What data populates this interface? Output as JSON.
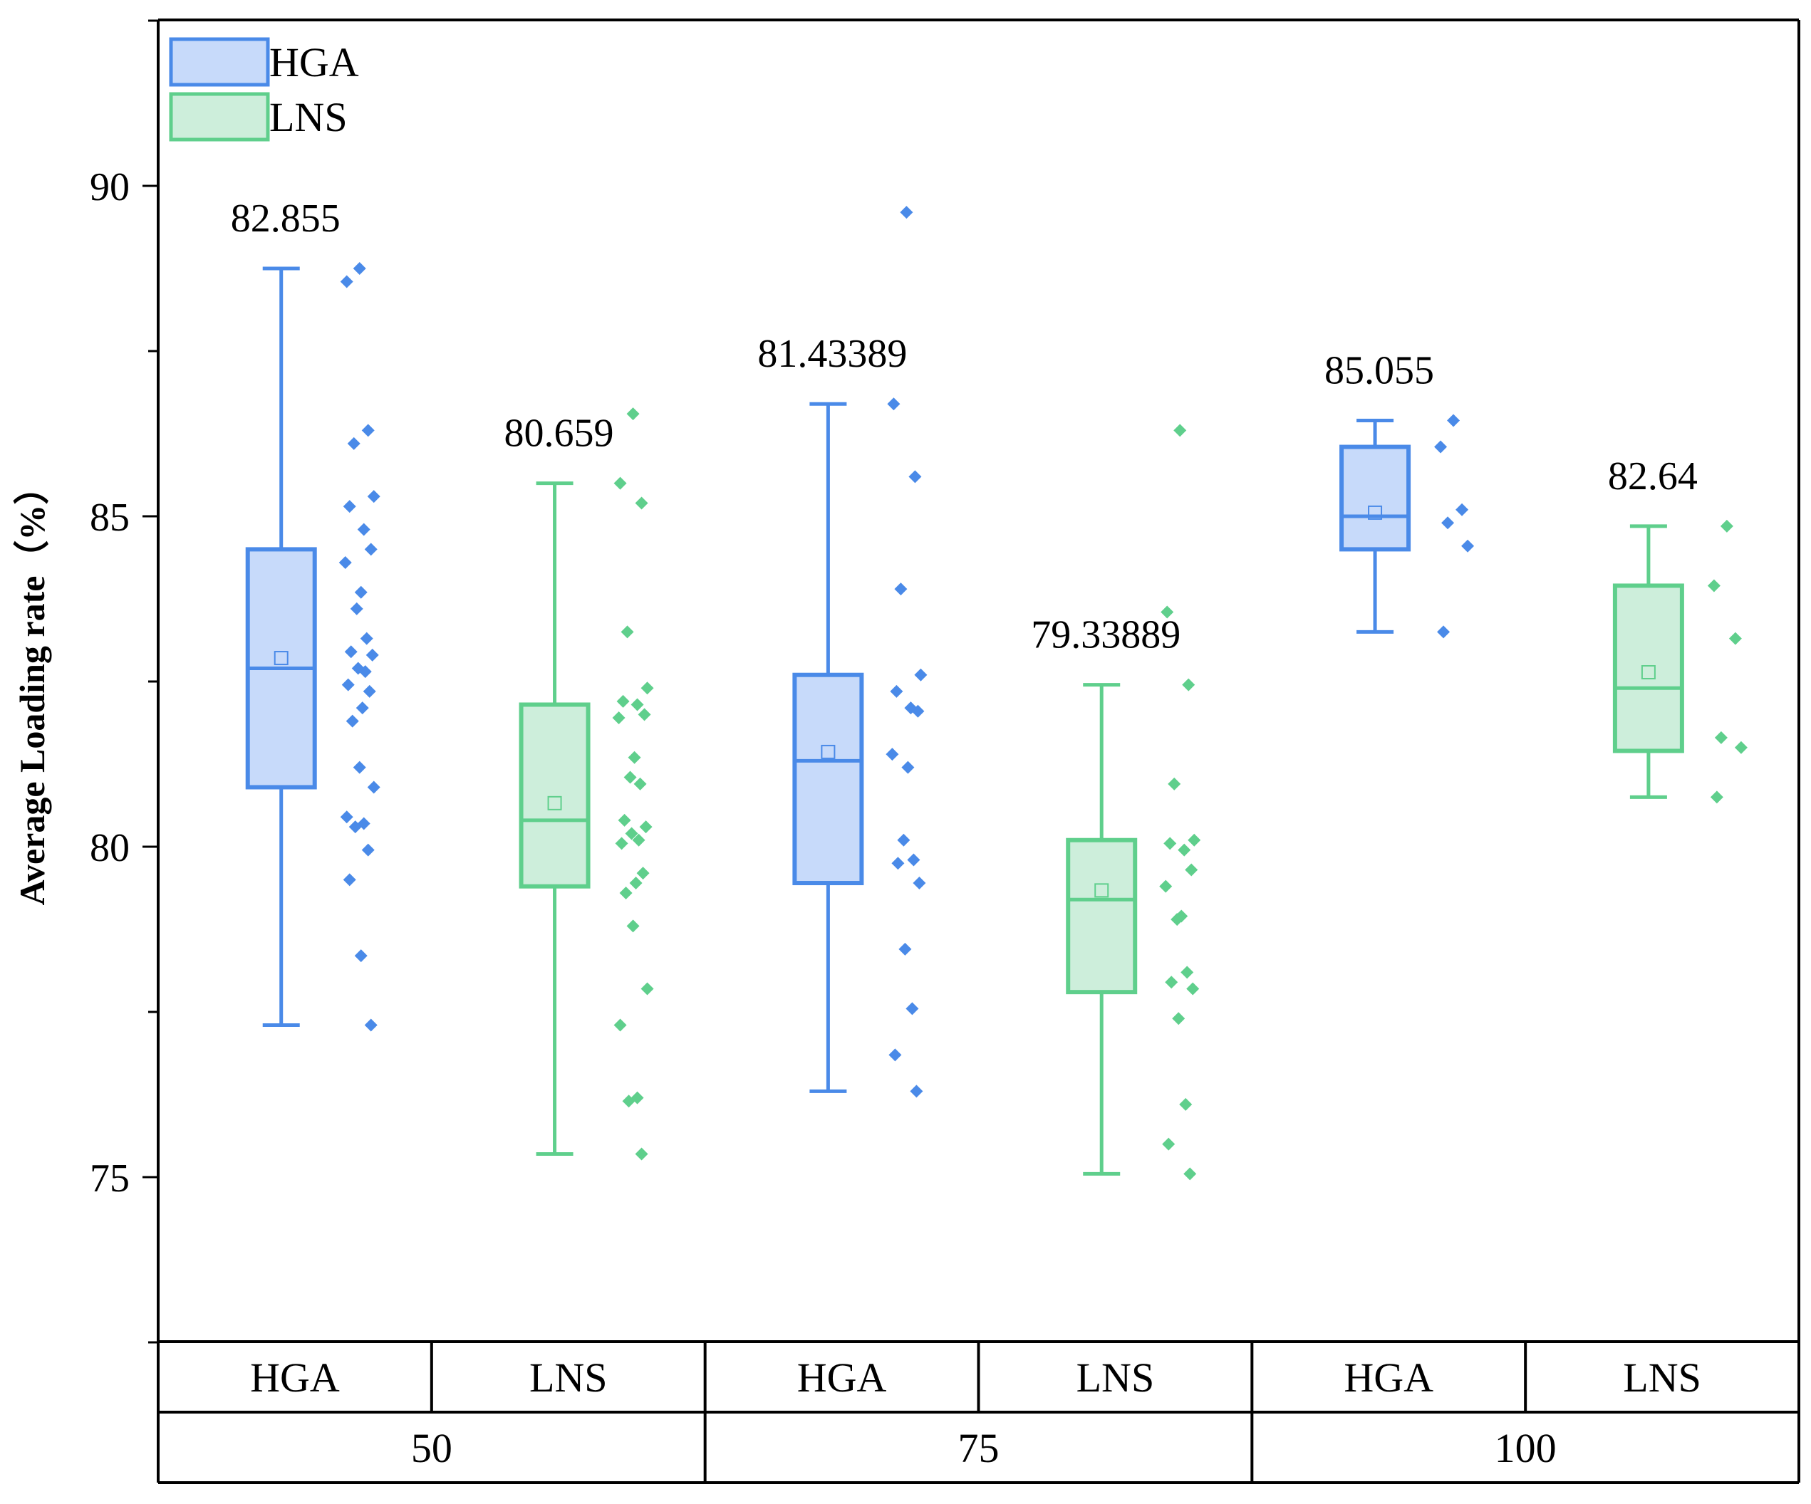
{
  "chart_data": {
    "type": "box",
    "title": "",
    "xlabel": "",
    "ylabel": "Average Loading rate（%）",
    "ylim": [
      72.5,
      92.5
    ],
    "yticks": [
      75,
      80,
      85,
      90
    ],
    "legend": {
      "position": "top-left",
      "entries": [
        {
          "name": "HGA",
          "color": "#4a8ae8",
          "fill": "#c7dafa"
        },
        {
          "name": "LNS",
          "color": "#5fcf8c",
          "fill": "#cdeedb"
        }
      ]
    },
    "groups": [
      "50",
      "75",
      "100"
    ],
    "series_order": [
      "HGA",
      "LNS"
    ],
    "boxes": [
      {
        "group": "50",
        "series": "HGA",
        "whisker_low": 77.3,
        "q1": 80.9,
        "median": 82.7,
        "q3": 84.5,
        "whisker_high": 88.75,
        "mean": 82.855,
        "mean_label": "82.855",
        "points": [
          88.75,
          88.55,
          86.3,
          86.1,
          85.3,
          85.15,
          84.8,
          84.5,
          84.3,
          83.85,
          83.6,
          83.15,
          82.95,
          82.9,
          82.7,
          82.65,
          82.45,
          82.35,
          82.1,
          81.9,
          81.2,
          80.9,
          80.45,
          80.35,
          80.3,
          79.95,
          79.5,
          78.35,
          77.3
        ]
      },
      {
        "group": "50",
        "series": "LNS",
        "whisker_low": 75.35,
        "q1": 79.4,
        "median": 80.4,
        "q3": 82.15,
        "whisker_high": 85.5,
        "mean": 80.659,
        "mean_label": "80.659",
        "points": [
          86.55,
          85.5,
          85.2,
          83.25,
          82.4,
          82.2,
          82.15,
          82.0,
          81.95,
          81.35,
          81.05,
          80.95,
          80.4,
          80.3,
          80.2,
          80.1,
          80.05,
          79.6,
          79.45,
          79.3,
          78.8,
          77.85,
          77.3,
          76.2,
          76.15,
          75.35
        ]
      },
      {
        "group": "75",
        "series": "HGA",
        "whisker_low": 76.3,
        "q1": 79.45,
        "median": 81.3,
        "q3": 82.6,
        "whisker_high": 86.7,
        "mean": 81.43389,
        "mean_label": "81.43389",
        "points": [
          89.6,
          86.7,
          85.6,
          83.9,
          82.6,
          82.35,
          82.1,
          82.05,
          81.4,
          81.2,
          80.1,
          79.8,
          79.75,
          79.45,
          78.45,
          77.55,
          76.85,
          76.3
        ]
      },
      {
        "group": "75",
        "series": "LNS",
        "whisker_low": 75.05,
        "q1": 77.8,
        "median": 79.2,
        "q3": 80.1,
        "whisker_high": 82.45,
        "mean": 79.33889,
        "mean_label": "79.33889",
        "points": [
          86.3,
          83.55,
          82.45,
          80.95,
          80.1,
          80.05,
          79.95,
          79.65,
          79.4,
          78.95,
          78.9,
          78.1,
          77.95,
          77.85,
          77.4,
          76.1,
          75.5,
          75.05
        ]
      },
      {
        "group": "100",
        "series": "HGA",
        "whisker_low": 83.25,
        "q1": 84.5,
        "median": 85.0,
        "q3": 86.05,
        "whisker_high": 86.45,
        "mean": 85.055,
        "mean_label": "85.055",
        "points": [
          86.45,
          86.05,
          85.1,
          84.9,
          84.55,
          83.25
        ]
      },
      {
        "group": "100",
        "series": "LNS",
        "whisker_low": 80.75,
        "q1": 81.45,
        "median": 82.4,
        "q3": 83.95,
        "whisker_high": 84.85,
        "mean": 82.64,
        "mean_label": "82.64",
        "points": [
          84.85,
          83.95,
          83.15,
          81.65,
          81.5,
          80.75
        ]
      }
    ]
  }
}
